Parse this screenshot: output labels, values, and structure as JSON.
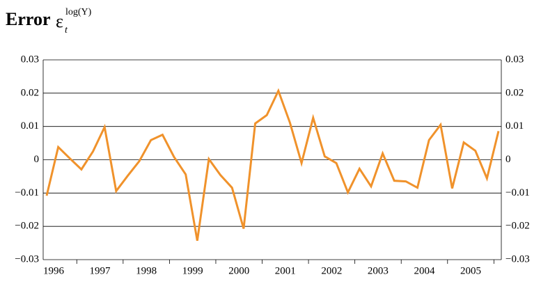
{
  "chart_data": {
    "type": "line",
    "title": "Error",
    "title_symbol": "ε",
    "title_subscript": "t",
    "title_superscript": "log(Y)",
    "categories": [
      "1996",
      null,
      null,
      null,
      "1997",
      null,
      null,
      null,
      "1998",
      null,
      null,
      null,
      "1999",
      null,
      null,
      null,
      "2000",
      null,
      null,
      null,
      "2001",
      null,
      null,
      null,
      "2002",
      null,
      null,
      null,
      "2003",
      null,
      null,
      null,
      "2004",
      null,
      null,
      null,
      "2005",
      null,
      null,
      null
    ],
    "series": [
      {
        "color": "#f0922b",
        "values": [
          -0.0108,
          0.0038,
          0.0004,
          -0.0029,
          0.0025,
          0.0098,
          -0.0094,
          -0.0048,
          -0.0004,
          0.0059,
          0.0075,
          0.0008,
          -0.0044,
          -0.0243,
          0.0002,
          -0.0046,
          -0.0084,
          -0.0207,
          0.0109,
          0.0134,
          0.0207,
          0.0111,
          -0.001,
          0.0126,
          0.001,
          -0.001,
          -0.0098,
          -0.0027,
          -0.008,
          0.0019,
          -0.0063,
          -0.0065,
          -0.0084,
          0.0059,
          0.0105,
          -0.0086,
          0.0052,
          0.0027,
          -0.0056,
          0.0086
        ]
      }
    ],
    "ylim": [
      -0.03,
      0.03
    ],
    "yticks": [
      {
        "value": -0.03,
        "label": "−0.03"
      },
      {
        "value": -0.02,
        "label": "−0.02"
      },
      {
        "value": -0.01,
        "label": "−0.01"
      },
      0,
      0.01,
      0.02,
      0.03
    ],
    "grid": true,
    "right_axis": true
  }
}
